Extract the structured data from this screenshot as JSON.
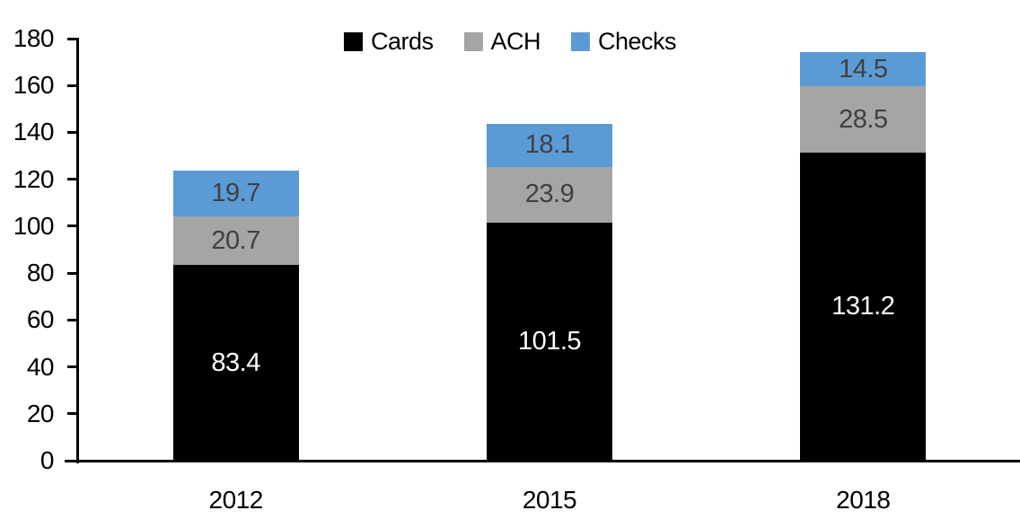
{
  "chart_data": {
    "type": "bar",
    "stacked": true,
    "title": "",
    "categories": [
      "2012",
      "2015",
      "2018"
    ],
    "series": [
      {
        "name": "Cards",
        "color": "#000000",
        "label_color": "#ffffff",
        "values": [
          83.4,
          101.5,
          131.2
        ]
      },
      {
        "name": "ACH",
        "color": "#a5a5a5",
        "label_color": "#404040",
        "values": [
          20.7,
          23.9,
          28.5
        ]
      },
      {
        "name": "Checks",
        "color": "#5b9bd5",
        "label_color": "#404040",
        "values": [
          19.7,
          18.1,
          14.5
        ]
      }
    ],
    "totals": [
      123.8,
      143.5,
      174.2
    ],
    "ylim": [
      0,
      180
    ],
    "ytick_step": 20,
    "yticks": [
      0,
      20,
      40,
      60,
      80,
      100,
      120,
      140,
      160,
      180
    ],
    "legend_position": "top-center",
    "legend_labels": [
      "Cards",
      "ACH",
      "Checks"
    ],
    "grid": false,
    "axis_color": "#000000",
    "background_color": "#ffffff"
  }
}
